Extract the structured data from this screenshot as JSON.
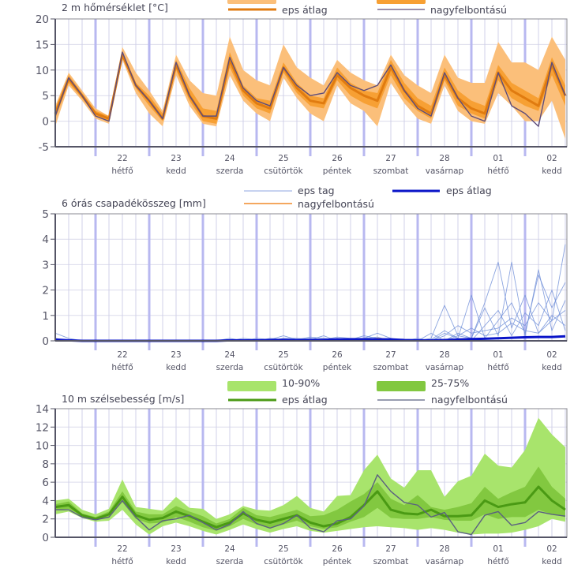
{
  "chart_data": [
    {
      "type": "area",
      "title": "2 m hőmérséklet [°C]",
      "ylim": [
        -5,
        20
      ],
      "yticks": [
        "20",
        "15",
        "10",
        "5",
        "0",
        "-5"
      ],
      "ytick_values": [
        20,
        15,
        10,
        5,
        0,
        -5
      ],
      "legend": {
        "mean": "eps átlag",
        "det": "nagyfelbontású"
      },
      "colors": {
        "band90": "#fbbf7a",
        "band75": "#f7a034",
        "mean": "#e07b10",
        "det": "#5d4c7a"
      },
      "x_count": 39,
      "days": [
        {
          "num": "22",
          "name": "hétfő"
        },
        {
          "num": "23",
          "name": "kedd"
        },
        {
          "num": "24",
          "name": "szerda"
        },
        {
          "num": "25",
          "name": "csütörtök"
        },
        {
          "num": "26",
          "name": "péntek"
        },
        {
          "num": "27",
          "name": "szombat"
        },
        {
          "num": "28",
          "name": "vasárnap"
        },
        {
          "num": "01",
          "name": "hétfő"
        },
        {
          "num": "02",
          "name": "kedd"
        }
      ],
      "series": [
        {
          "name": "nagyfelbontású",
          "values": [
            1,
            8.5,
            5,
            1,
            0,
            13.5,
            7,
            4,
            0.5,
            11.5,
            5,
            1,
            1,
            12.5,
            6.5,
            4,
            3,
            10.5,
            7,
            5,
            5.5,
            9.5,
            7,
            6,
            7,
            11,
            6,
            2.5,
            1,
            9.5,
            4.5,
            1,
            0,
            9.5,
            3,
            1.5,
            -1,
            11.5,
            5
          ]
        },
        {
          "name": "eps átlag",
          "values": [
            1.5,
            8.3,
            5,
            1.5,
            0.5,
            13,
            7,
            4,
            0.5,
            11,
            5,
            1,
            0.5,
            12,
            6,
            3.5,
            2.5,
            10.5,
            6.5,
            4,
            3.5,
            9,
            6.5,
            5,
            4,
            10.5,
            6,
            3,
            1.5,
            9,
            4.5,
            2.5,
            1.5,
            9.5,
            6,
            4.5,
            3,
            11,
            5
          ]
        },
        {
          "name": "p25",
          "values": [
            0.5,
            7.5,
            4.5,
            1,
            0,
            12.5,
            6.5,
            3,
            0,
            10,
            4,
            0,
            -0.5,
            10.5,
            5,
            2.5,
            1.5,
            9.5,
            5.5,
            3,
            2.5,
            8,
            5,
            3.5,
            2.5,
            9,
            4.5,
            2,
            0.5,
            8,
            3,
            1.5,
            0.5,
            8,
            4.5,
            3,
            2,
            9,
            3
          ]
        },
        {
          "name": "p75",
          "values": [
            2.5,
            9,
            5.5,
            2,
            1,
            13.5,
            7.5,
            5,
            1.5,
            12,
            6.5,
            2.5,
            2,
            13.5,
            7,
            4.5,
            4,
            11.5,
            7.5,
            5,
            4.5,
            10.5,
            7.5,
            6,
            5.5,
            12,
            7.5,
            4.5,
            3,
            10.5,
            6,
            4,
            3,
            11,
            7.5,
            6,
            4.5,
            12.5,
            7
          ]
        },
        {
          "name": "p10",
          "values": [
            -1,
            7,
            4,
            0.5,
            -0.5,
            12,
            5.5,
            1.5,
            -1,
            9,
            3,
            -0.5,
            -1,
            9,
            4,
            1.5,
            0,
            8.5,
            4.5,
            1.5,
            0,
            7,
            3.5,
            2,
            -1,
            7.5,
            3.5,
            0.5,
            -0.5,
            7,
            2,
            0,
            -0.5,
            5.5,
            3,
            0,
            0,
            4,
            -3.5
          ]
        },
        {
          "name": "p90",
          "values": [
            3,
            9.5,
            6,
            2.5,
            1,
            14.5,
            9.5,
            6,
            2,
            13,
            8,
            5.5,
            5,
            16.5,
            10,
            8,
            7,
            15,
            10.5,
            8.5,
            7,
            12,
            9.5,
            8,
            7,
            13,
            9,
            7,
            5.5,
            13,
            8.5,
            7.5,
            7.5,
            15.5,
            11.5,
            11.5,
            10,
            16.5,
            12
          ]
        }
      ]
    },
    {
      "type": "line",
      "title": "6 órás csapadékösszeg [mm]",
      "ylim": [
        0,
        5
      ],
      "yticks": [
        "5",
        "4",
        "3",
        "2",
        "1",
        "0"
      ],
      "ytick_values": [
        5,
        4,
        3,
        2,
        1,
        0
      ],
      "legend": {
        "member": "eps tag",
        "mean": "eps átlag",
        "det": "nagyfelbontású"
      },
      "colors": {
        "member": "#6f8fd8",
        "mean": "#0a14c8",
        "det": "#f08a2a"
      },
      "x_count": 39,
      "series": [
        {
          "name": "eps átlag",
          "values": [
            0.05,
            0.02,
            0,
            0,
            0,
            0,
            0,
            0,
            0,
            0,
            0,
            0,
            0,
            0.02,
            0.02,
            0.02,
            0.03,
            0.04,
            0.03,
            0.03,
            0.04,
            0.06,
            0.06,
            0.06,
            0.06,
            0.06,
            0.03,
            0.02,
            0.02,
            0.03,
            0.05,
            0.07,
            0.08,
            0.1,
            0.12,
            0.14,
            0.15,
            0.15,
            0.18
          ]
        },
        {
          "name": "nagyfelbontású",
          "values": [
            0,
            0,
            0,
            0,
            0,
            0,
            0,
            0,
            0,
            0,
            0,
            0,
            0,
            0,
            0,
            0,
            0,
            0,
            0,
            0,
            0,
            0,
            0,
            0,
            0.1,
            0.05,
            0,
            0,
            0,
            0,
            0,
            0,
            0,
            0,
            0,
            0,
            0,
            0,
            0
          ]
        },
        {
          "name": "eps tag 1",
          "values": [
            0.3,
            0.1,
            0,
            0,
            0,
            0,
            0,
            0,
            0,
            0,
            0,
            0,
            0,
            0.1,
            0,
            0.1,
            0.05,
            0.2,
            0.05,
            0.1,
            0.05,
            0.15,
            0.1,
            0.1,
            0.3,
            0.1,
            0,
            0,
            0.3,
            0,
            0.3,
            0.1,
            1.5,
            3.1,
            0.5,
            1.8,
            0.3,
            0.8,
            3.8
          ]
        },
        {
          "name": "eps tag 2",
          "values": [
            0.1,
            0,
            0,
            0,
            0,
            0,
            0,
            0,
            0,
            0,
            0,
            0,
            0,
            0.05,
            0.05,
            0,
            0.1,
            0.05,
            0.05,
            0.15,
            0.1,
            0.05,
            0.05,
            0.2,
            0.1,
            0.05,
            0,
            0,
            0.1,
            1.4,
            0.2,
            0.1,
            1.3,
            0.2,
            3.1,
            0.2,
            2.8,
            0.4,
            1.6
          ]
        },
        {
          "name": "eps tag 3",
          "values": [
            0,
            0,
            0,
            0,
            0,
            0,
            0,
            0,
            0,
            0,
            0,
            0,
            0,
            0,
            0.1,
            0.05,
            0,
            0.1,
            0.1,
            0.05,
            0.2,
            0,
            0.1,
            0.1,
            0.15,
            0,
            0,
            0.1,
            0,
            0.3,
            0.1,
            1.8,
            0.1,
            0.8,
            1.5,
            0.3,
            2.6,
            1.3,
            2.3
          ]
        },
        {
          "name": "eps tag 4",
          "values": [
            0.05,
            0,
            0,
            0,
            0,
            0,
            0,
            0,
            0,
            0,
            0,
            0,
            0,
            0,
            0,
            0.05,
            0,
            0,
            0,
            0,
            0,
            0.1,
            0,
            0,
            0,
            0,
            0,
            0,
            0.05,
            0.4,
            0.1,
            0,
            0.6,
            1.2,
            0.2,
            1.1,
            0.6,
            2.0,
            0.4
          ]
        },
        {
          "name": "eps tag 5",
          "values": [
            0,
            0,
            0,
            0,
            0,
            0,
            0,
            0,
            0,
            0,
            0,
            0,
            0,
            0,
            0,
            0,
            0,
            0,
            0,
            0,
            0,
            0,
            0,
            0,
            0,
            0,
            0,
            0,
            0,
            0.2,
            0.6,
            0.3,
            0.4,
            0.5,
            0.9,
            0.6,
            1.5,
            0.8,
            1.2
          ]
        },
        {
          "name": "eps tag 6",
          "values": [
            0,
            0,
            0,
            0,
            0,
            0,
            0,
            0,
            0,
            0,
            0,
            0,
            0,
            0,
            0,
            0,
            0,
            0,
            0,
            0,
            0,
            0,
            0,
            0,
            0,
            0,
            0,
            0,
            0,
            0,
            0.2,
            0.5,
            0.2,
            0.3,
            0.7,
            0.4,
            0.3,
            1.0,
            0.6
          ]
        }
      ]
    },
    {
      "type": "area",
      "title": "10 m szélsebesség [m/s]",
      "ylim": [
        0,
        14
      ],
      "yticks": [
        "14",
        "12",
        "10",
        "8",
        "6",
        "4",
        "2",
        "0"
      ],
      "ytick_values": [
        14,
        12,
        10,
        8,
        6,
        4,
        2,
        0
      ],
      "legend": {
        "band90": "10-90%",
        "band75": "25-75%",
        "mean": "eps átlag",
        "det": "nagyfelbontású"
      },
      "colors": {
        "band90": "#a8e46c",
        "band75": "#82c840",
        "mean": "#4a9a14",
        "det": "#5a6080"
      },
      "x_count": 39,
      "series": [
        {
          "name": "nagyfelbontású",
          "values": [
            3,
            3,
            2.2,
            1.9,
            2.2,
            4,
            2.2,
            0.8,
            1.8,
            2,
            2.4,
            1.6,
            0.8,
            1.4,
            2.8,
            1.5,
            1,
            1.5,
            2.4,
            1,
            0.6,
            1.8,
            2,
            3.4,
            6.8,
            5,
            3.8,
            3.5,
            2.2,
            2.7,
            0.6,
            0.3,
            2.4,
            2.8,
            1.3,
            1.6,
            2.8,
            2.5,
            2.3
          ]
        },
        {
          "name": "eps átlag",
          "values": [
            3.3,
            3.5,
            2.4,
            2,
            2.5,
            4.4,
            2.4,
            1.9,
            2.1,
            2.8,
            2.3,
            1.7,
            1.1,
            1.6,
            2.6,
            1.9,
            1.6,
            2,
            2.4,
            1.6,
            1.2,
            1.5,
            2.2,
            3.5,
            5,
            3,
            2.6,
            2.5,
            3,
            2.3,
            2.3,
            2.4,
            4,
            3.3,
            3.6,
            3.8,
            5.5,
            4,
            3
          ]
        },
        {
          "name": "p25",
          "values": [
            3,
            3.1,
            2.3,
            1.9,
            2.2,
            3.8,
            2,
            1.5,
            1.6,
            2.2,
            1.7,
            1.1,
            0.7,
            1.2,
            2,
            1.4,
            1,
            1.4,
            1.8,
            1.2,
            0.9,
            1.1,
            1.7,
            2.2,
            3.2,
            2.1,
            2,
            2,
            2.2,
            1.9,
            1.8,
            1.8,
            2.5,
            2,
            2.2,
            2.2,
            3,
            2.5,
            2.2
          ]
        },
        {
          "name": "p75",
          "values": [
            3.6,
            3.9,
            2.6,
            2.2,
            2.8,
            5,
            2.8,
            2.5,
            2.5,
            3.4,
            2.8,
            2.3,
            1.5,
            2,
            3.2,
            2.4,
            2.2,
            2.6,
            3,
            2.3,
            2.4,
            3,
            3.9,
            4.7,
            6,
            4.2,
            3.5,
            4.6,
            3.3,
            3,
            3.3,
            3.7,
            5.5,
            4.2,
            4.9,
            5.5,
            7.7,
            5.5,
            4.2
          ]
        },
        {
          "name": "p10",
          "values": [
            2.5,
            2.8,
            2.1,
            1.7,
            1.8,
            3,
            1.4,
            0.3,
            1.2,
            1.6,
            1.2,
            0.7,
            0.3,
            0.8,
            1.4,
            0.9,
            0.5,
            0.9,
            1.2,
            0.7,
            0.5,
            0.7,
            0.9,
            1.1,
            1.2,
            1.1,
            1,
            0.8,
            1,
            0.8,
            0.5,
            0.3,
            0.4,
            0.4,
            0.5,
            0.8,
            1.2,
            2,
            1.7
          ]
        },
        {
          "name": "p90",
          "values": [
            4,
            4.2,
            3,
            2.5,
            3.1,
            6.3,
            3.3,
            3.1,
            2.9,
            4.4,
            3.2,
            3.1,
            2,
            2.5,
            3.4,
            3,
            2.9,
            3.5,
            4.5,
            3.2,
            2.8,
            4.5,
            4.6,
            7.3,
            9,
            6.4,
            5.4,
            7.3,
            7.3,
            4.4,
            6.1,
            6.7,
            9.1,
            7.8,
            7.6,
            9.5,
            13,
            11.2,
            9.8
          ]
        }
      ]
    }
  ]
}
